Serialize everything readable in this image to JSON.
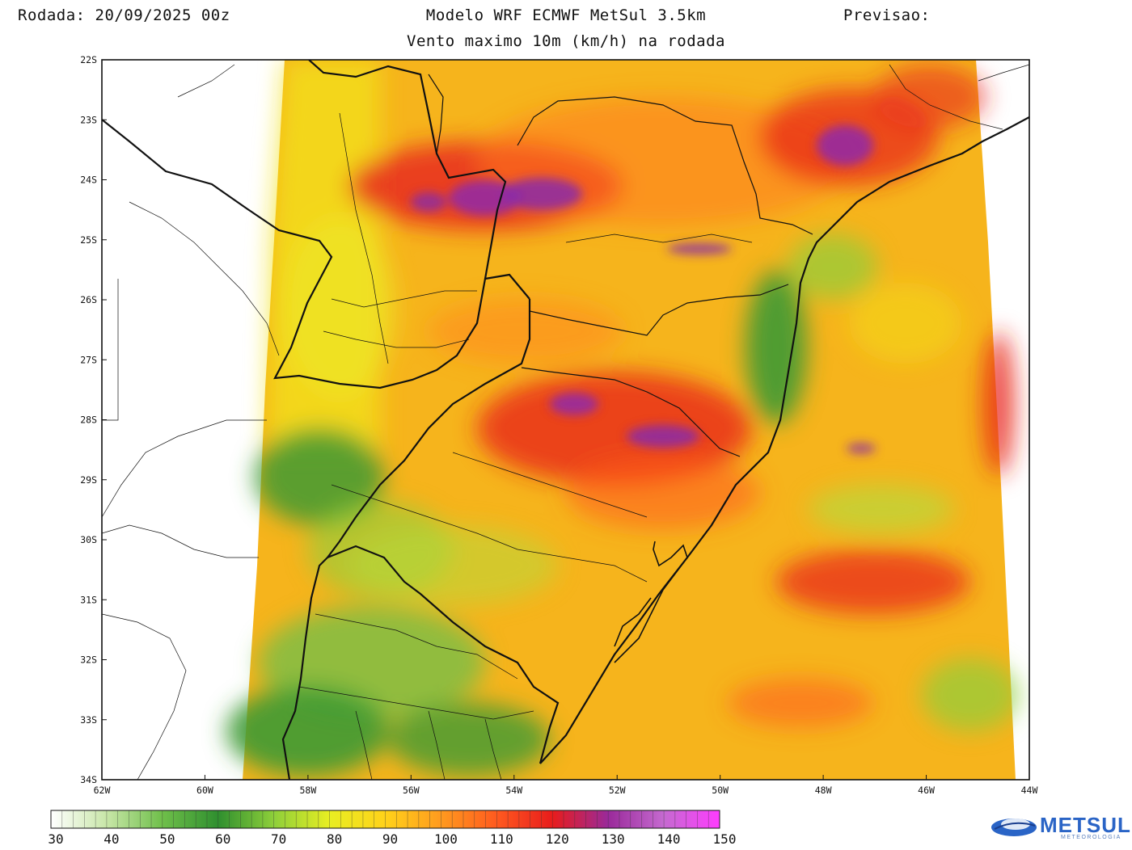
{
  "header": {
    "run": "Rodada: 20/09/2025 00z",
    "model": "Modelo WRF ECMWF MetSul 3.5km",
    "forecast": "Previsao:",
    "subtitle": "Vento maximo 10m (km/h) na rodada"
  },
  "map": {
    "lat_labels": [
      "22S",
      "23S",
      "24S",
      "25S",
      "26S",
      "27S",
      "28S",
      "29S",
      "30S",
      "31S",
      "32S",
      "33S",
      "34S"
    ],
    "lon_labels": [
      "62W",
      "60W",
      "58W",
      "56W",
      "54W",
      "52W",
      "50W",
      "48W",
      "46W",
      "44W"
    ]
  },
  "colorbar": {
    "labels": [
      "30",
      "40",
      "50",
      "60",
      "70",
      "80",
      "90",
      "100",
      "110",
      "120",
      "130",
      "140",
      "150"
    ],
    "min": 30,
    "max": 150,
    "stops": [
      "#ffffff",
      "#c8e6a8",
      "#6fbf4a",
      "#2f8f2f",
      "#8ecf3a",
      "#e8ee22",
      "#ffd21a",
      "#ff9a1f",
      "#ff5a1f",
      "#e81c1c",
      "#9a2a9a",
      "#c56ad0",
      "#ff3cff"
    ]
  },
  "logo": {
    "name": "METSUL",
    "sub": "METEOROLOGIA"
  },
  "colors": {
    "high_wind": "#8a2aa8",
    "strong_wind": "#e8281c",
    "moderate_wind": "#ff8c1a",
    "light_wind": "#f2e21a",
    "calm_wind": "#3e9a34"
  }
}
